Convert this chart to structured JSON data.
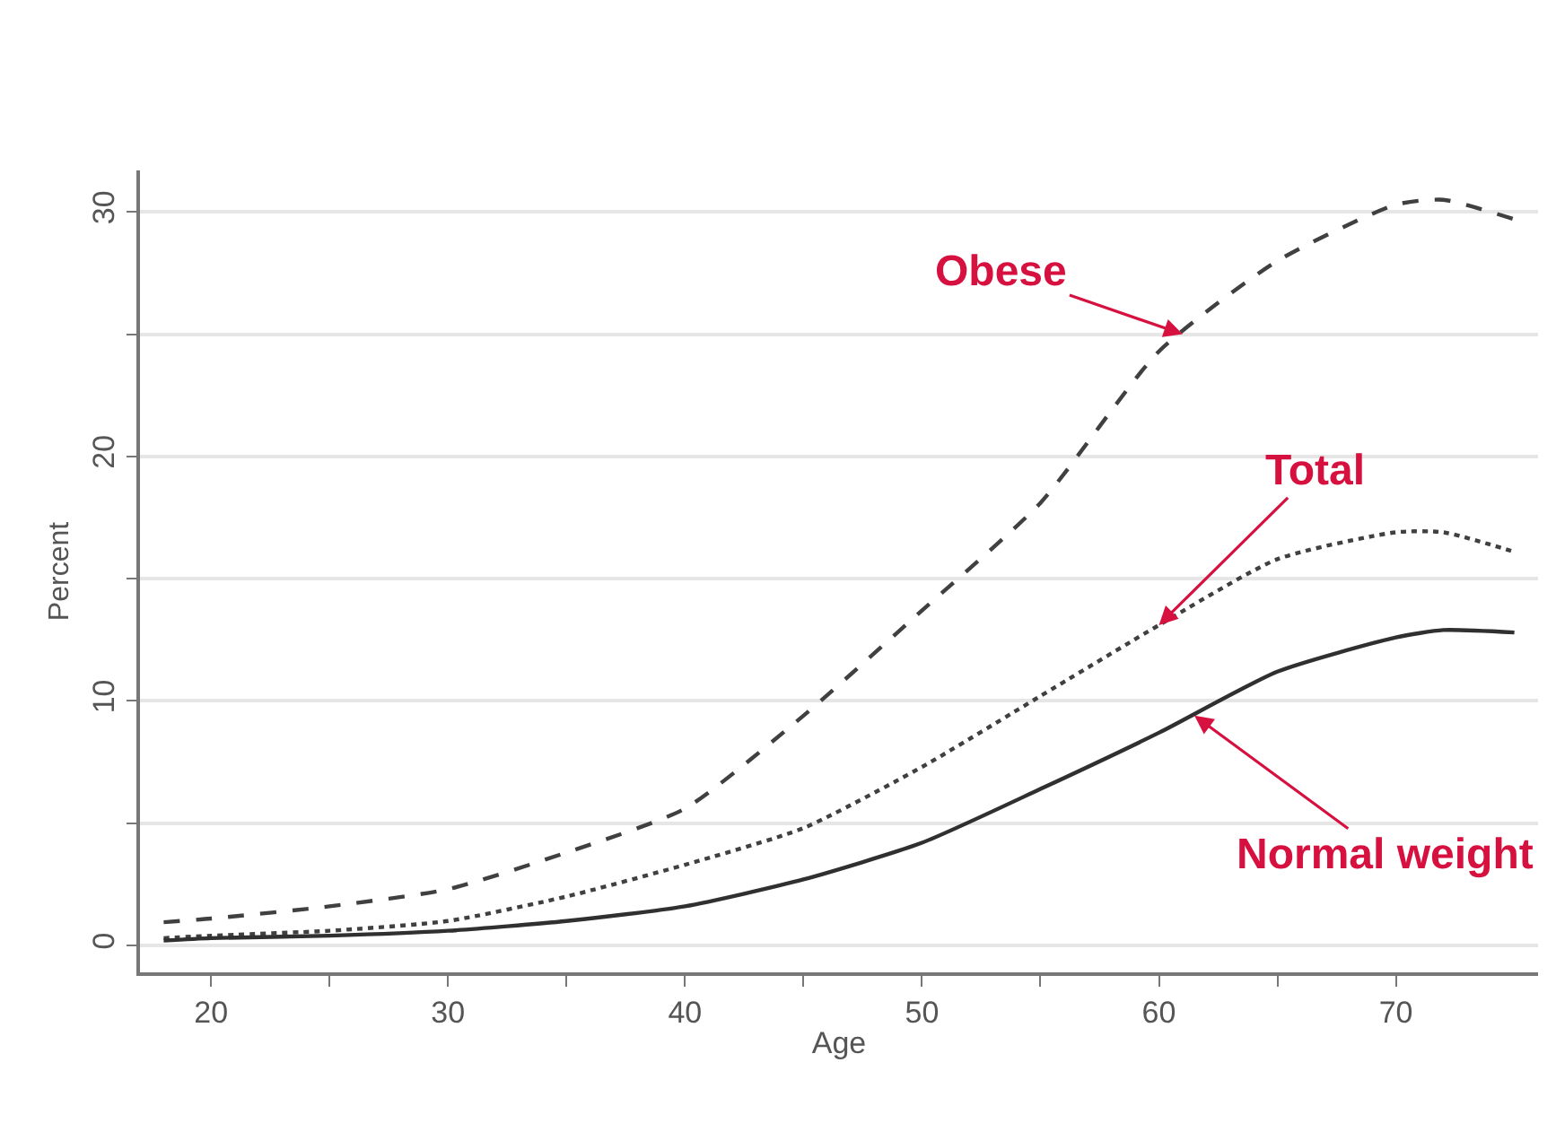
{
  "chart_data": {
    "type": "line",
    "xlabel": "Age",
    "ylabel": "Percent",
    "x": [
      18,
      20,
      25,
      30,
      35,
      40,
      45,
      50,
      55,
      60,
      65,
      70,
      72,
      75
    ],
    "series": [
      {
        "color": "#404040",
        "line_style": "dashed",
        "values": [
          0.95,
          1.1,
          1.6,
          2.3,
          3.8,
          5.6,
          9.4,
          13.7,
          18.1,
          24.3,
          28.0,
          30.3,
          30.5,
          29.7
        ]
      },
      {
        "color": "#404040",
        "line_style": "dotted",
        "values": [
          0.3,
          0.4,
          0.6,
          1.0,
          2.0,
          3.3,
          4.8,
          7.3,
          10.2,
          13.1,
          15.8,
          16.9,
          16.9,
          16.1
        ]
      },
      {
        "color": "#303030",
        "line_style": "solid",
        "values": [
          0.2,
          0.3,
          0.4,
          0.6,
          1.0,
          1.6,
          2.7,
          4.2,
          6.4,
          8.7,
          11.2,
          12.6,
          12.9,
          12.8
        ]
      }
    ],
    "annotations": [
      {
        "text": "Obese",
        "x": 61,
        "y": 25.0
      },
      {
        "text": "Total",
        "x": 60,
        "y": 13.1
      },
      {
        "text": "Normal weight",
        "x": 61.5,
        "y": 9.4
      }
    ],
    "xlim": [
      17,
      76
    ],
    "ylim": [
      -1.1,
      31.7
    ],
    "xticks": [
      20,
      {
        "value": 25,
        "label": null
      },
      30,
      {
        "value": 35,
        "label": null
      },
      40,
      {
        "value": 45,
        "label": null
      },
      50,
      {
        "value": 55,
        "label": null
      },
      60,
      {
        "value": 65,
        "label": null
      },
      70
    ],
    "yticks": [
      0,
      {
        "value": 5,
        "label": null
      },
      10,
      {
        "value": 15,
        "label": null
      },
      20,
      {
        "value": 25,
        "label": null
      },
      30
    ],
    "grid": "y",
    "marker": "none"
  }
}
